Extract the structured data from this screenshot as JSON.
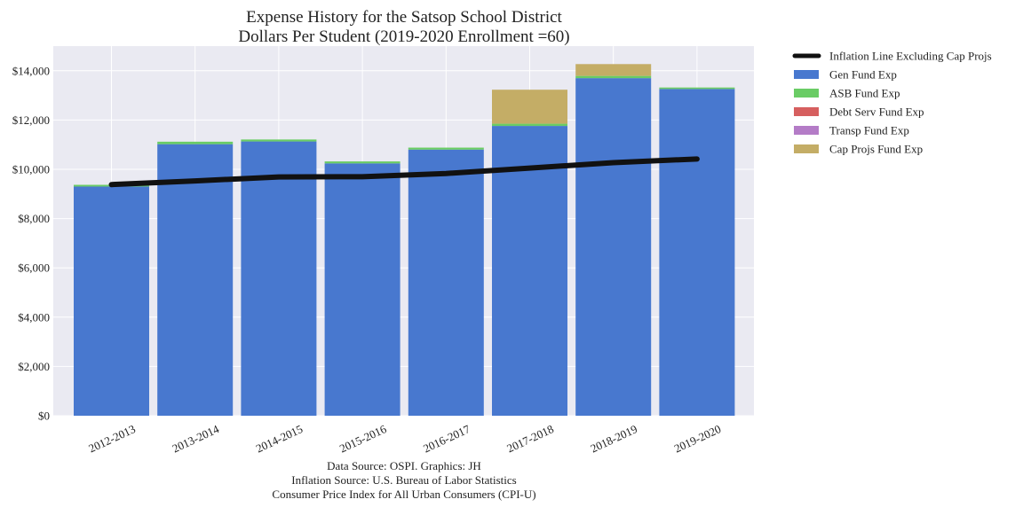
{
  "chart_data": {
    "type": "bar",
    "stacked": true,
    "title": "Expense History for the Satsop School District",
    "subtitle": "Dollars Per Student (2019-2020 Enrollment =60)",
    "xlabel": "",
    "ylabel": "",
    "categories": [
      "2012-2013",
      "2013-2014",
      "2014-2015",
      "2015-2016",
      "2016-2017",
      "2017-2018",
      "2018-2019",
      "2019-2020"
    ],
    "ylim": [
      0,
      15000
    ],
    "yticks": [
      0,
      2000,
      4000,
      6000,
      8000,
      10000,
      12000,
      14000
    ],
    "ytick_labels": [
      "$0",
      "$2,000",
      "$4,000",
      "$6,000",
      "$8,000",
      "$10,000",
      "$12,000",
      "$14,000"
    ],
    "grid": true,
    "legend_position": "outside-right",
    "series": [
      {
        "name": "Gen Fund Exp",
        "color": "#4878cf",
        "values": [
          9300,
          11020,
          11130,
          10240,
          10800,
          11760,
          13700,
          13260
        ]
      },
      {
        "name": "ASB Fund Exp",
        "color": "#6acc65",
        "values": [
          70,
          100,
          80,
          80,
          80,
          90,
          90,
          60
        ]
      },
      {
        "name": "Debt Serv Fund Exp",
        "color": "#d65f5f",
        "values": [
          0,
          0,
          0,
          0,
          0,
          0,
          0,
          0
        ]
      },
      {
        "name": "Transp Fund Exp",
        "color": "#b47cc7",
        "values": [
          0,
          0,
          0,
          0,
          0,
          0,
          0,
          0
        ]
      },
      {
        "name": "Cap Projs Fund Exp",
        "color": "#c4ad66",
        "values": [
          0,
          0,
          0,
          0,
          0,
          1380,
          480,
          0
        ]
      }
    ],
    "line": {
      "name": "Inflation Line Excluding Cap Projs",
      "color": "#111111",
      "values": [
        9380,
        9530,
        9690,
        9700,
        9830,
        10050,
        10270,
        10420
      ]
    },
    "source_lines": [
      "Data Source: OSPI. Graphics: JH",
      "Inflation Source: U.S. Bureau of Labor Statistics",
      "Consumer Price Index for All Urban Consumers (CPI-U)"
    ]
  }
}
